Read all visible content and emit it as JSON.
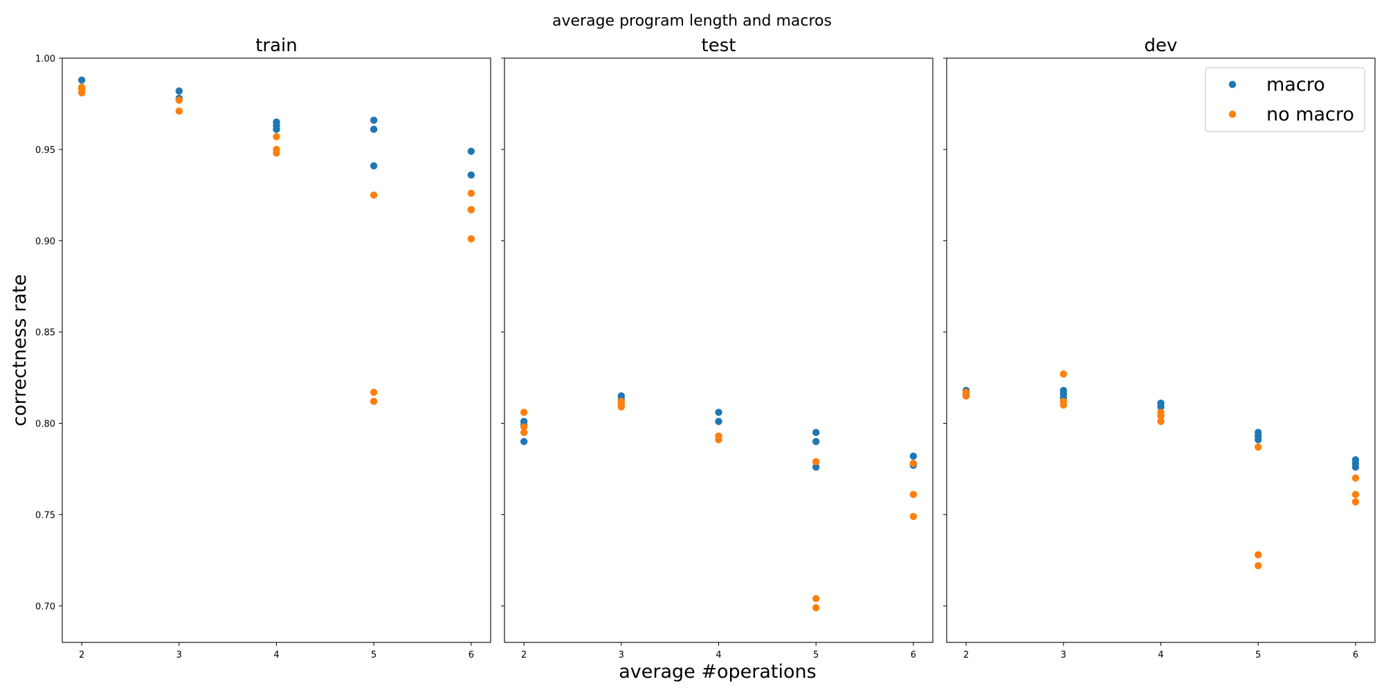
{
  "colors": {
    "macro": "#1f77b4",
    "no_macro": "#ff7f0e"
  },
  "chart_data": {
    "type": "scatter",
    "title": "average program length and macros",
    "xlabel": "average #operations",
    "ylabel": "correctness rate",
    "ylim": [
      0.68,
      1.0
    ],
    "xlim": [
      1.8,
      6.2
    ],
    "xticks": [
      2,
      3,
      4,
      5,
      6
    ],
    "yticks": [
      0.7,
      0.75,
      0.8,
      0.85,
      0.9,
      0.95,
      1.0
    ],
    "ytick_labels": [
      "0.70",
      "0.75",
      "0.80",
      "0.85",
      "0.90",
      "0.95",
      "1.00"
    ],
    "xtick_labels": [
      "2",
      "3",
      "4",
      "5",
      "6"
    ],
    "legend": {
      "position": "top-right",
      "entries": [
        "macro",
        "no macro"
      ]
    },
    "panels": [
      {
        "title": "train",
        "series": [
          {
            "name": "macro",
            "x": [
              2,
              2,
              3,
              3,
              4,
              4,
              4,
              5,
              5,
              5,
              6,
              6,
              6
            ],
            "y": [
              0.988,
              0.984,
              0.982,
              0.978,
              0.965,
              0.963,
              0.961,
              0.966,
              0.961,
              0.941,
              0.949,
              0.936,
              0.917
            ]
          },
          {
            "name": "no macro",
            "x": [
              2,
              2,
              2,
              3,
              3,
              4,
              4,
              4,
              5,
              5,
              5,
              6,
              6,
              6
            ],
            "y": [
              0.984,
              0.983,
              0.981,
              0.977,
              0.971,
              0.957,
              0.95,
              0.948,
              0.925,
              0.817,
              0.812,
              0.926,
              0.917,
              0.901
            ]
          }
        ]
      },
      {
        "title": "test",
        "series": [
          {
            "name": "macro",
            "x": [
              2,
              2,
              2,
              3,
              3,
              3,
              4,
              4,
              5,
              5,
              5,
              6,
              6,
              6
            ],
            "y": [
              0.801,
              0.799,
              0.79,
              0.815,
              0.813,
              0.811,
              0.806,
              0.801,
              0.795,
              0.79,
              0.776,
              0.782,
              0.778,
              0.777
            ]
          },
          {
            "name": "no macro",
            "x": [
              2,
              2,
              2,
              3,
              3,
              3,
              4,
              4,
              5,
              5,
              5,
              6,
              6,
              6
            ],
            "y": [
              0.806,
              0.798,
              0.795,
              0.812,
              0.811,
              0.809,
              0.793,
              0.791,
              0.779,
              0.704,
              0.699,
              0.778,
              0.761,
              0.749
            ]
          }
        ]
      },
      {
        "title": "dev",
        "series": [
          {
            "name": "macro",
            "x": [
              2,
              2,
              2,
              3,
              3,
              3,
              4,
              4,
              5,
              5,
              5,
              6,
              6,
              6
            ],
            "y": [
              0.818,
              0.816,
              0.815,
              0.818,
              0.816,
              0.814,
              0.811,
              0.809,
              0.795,
              0.793,
              0.791,
              0.78,
              0.778,
              0.776
            ]
          },
          {
            "name": "no macro",
            "x": [
              2,
              2,
              3,
              3,
              3,
              4,
              4,
              4,
              5,
              5,
              5,
              6,
              6,
              6
            ],
            "y": [
              0.817,
              0.815,
              0.827,
              0.812,
              0.81,
              0.806,
              0.804,
              0.801,
              0.787,
              0.728,
              0.722,
              0.77,
              0.761,
              0.757
            ]
          }
        ]
      }
    ]
  }
}
